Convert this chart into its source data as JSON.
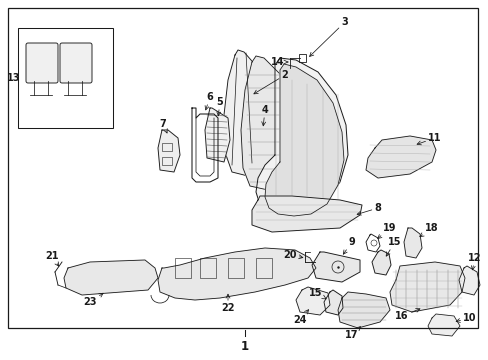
{
  "bg_color": "#ffffff",
  "border_color": "#1a1a1a",
  "line_color": "#1a1a1a",
  "text_color": "#1a1a1a",
  "fig_width": 4.89,
  "fig_height": 3.6,
  "dpi": 100,
  "label_fs": 7.0
}
